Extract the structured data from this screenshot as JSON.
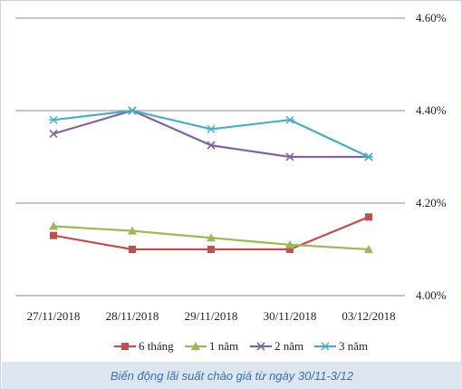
{
  "chart_data": {
    "type": "line",
    "categories": [
      "27/11/2018",
      "28/11/2018",
      "29/11/2018",
      "30/11/2018",
      "03/12/2018"
    ],
    "series": [
      {
        "name": "6 tháng",
        "color": "#c0504d",
        "marker": "square",
        "values": [
          4.13,
          4.1,
          4.1,
          4.1,
          4.17
        ]
      },
      {
        "name": "1 năm",
        "color": "#9bbb59",
        "marker": "triangle",
        "values": [
          4.15,
          4.14,
          4.125,
          4.11,
          4.1
        ]
      },
      {
        "name": "2 năm",
        "color": "#8064a2",
        "marker": "x",
        "values": [
          4.35,
          4.4,
          4.325,
          4.3,
          4.3
        ]
      },
      {
        "name": "3 năm",
        "color": "#4bacc6",
        "marker": "star",
        "values": [
          4.38,
          4.4,
          4.36,
          4.38,
          4.3
        ]
      }
    ],
    "y_ticks": [
      "4.00%",
      "4.20%",
      "4.40%",
      "4.60%"
    ],
    "ylim": [
      4.0,
      4.6
    ],
    "grid": true,
    "legend_position": "bottom"
  },
  "caption": "Biến động lãi suất chào giá từ ngày 30/11-3/12"
}
